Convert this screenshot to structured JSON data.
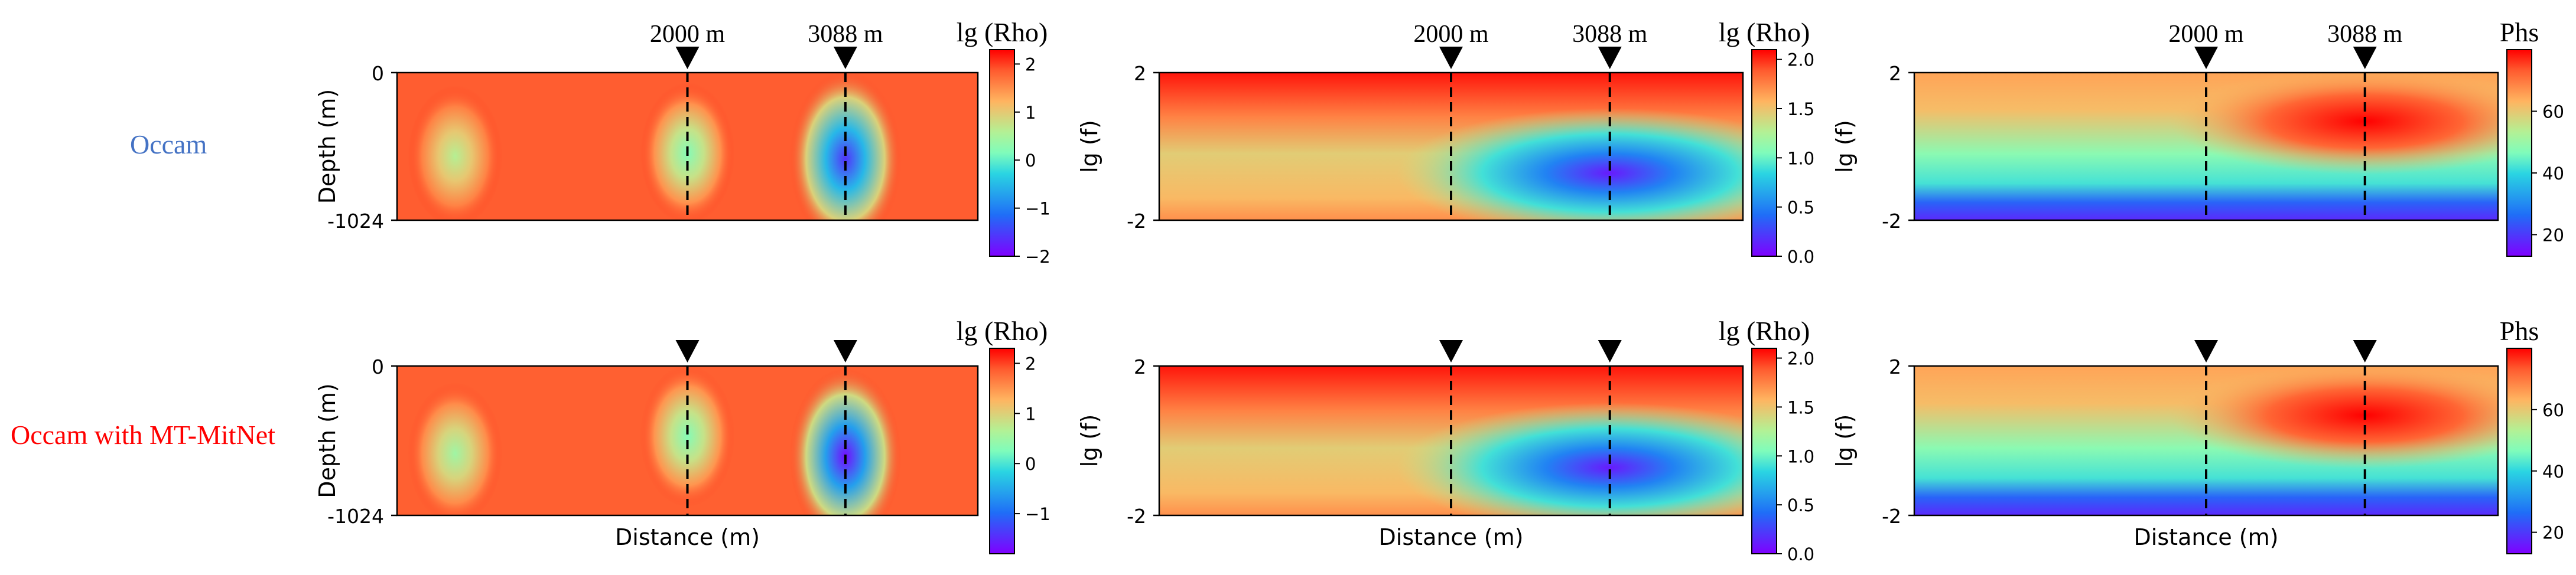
{
  "figure": {
    "row_labels": [
      {
        "text": "Occam",
        "color": "#4472c4"
      },
      {
        "text": "Occam with MT-MitNet",
        "color": "#ff0000"
      }
    ],
    "markers": [
      {
        "distance_m": 2000,
        "label": "2000 m"
      },
      {
        "distance_m": 3088,
        "label": "3088 m"
      }
    ],
    "distance_range_m": [
      0,
      4000
    ],
    "colormap": "rainbow"
  },
  "chart_data": [
    {
      "id": "occam-resistivity",
      "type": "heatmap",
      "row": "Occam",
      "quantity": "resistivity",
      "title": "lg (Rho)",
      "xlabel": "",
      "ylabel": "Depth (m)",
      "y_tick_labels": [
        "0",
        "-1024"
      ],
      "ylim": [
        -1024,
        0
      ],
      "colorbar": {
        "label": "lg (Rho)",
        "range": [
          -2,
          2.3
        ],
        "ticks": [
          "2",
          "1",
          "0",
          "−1",
          "−2"
        ]
      },
      "marker_labels_visible": true,
      "anomalies": [
        {
          "center_x_m": 400,
          "center_depth_m": -580,
          "value": 0.6
        },
        {
          "center_x_m": 2000,
          "center_depth_m": -560,
          "value": 0.2
        },
        {
          "center_x_m": 3088,
          "center_depth_m": -600,
          "value": -1.6
        }
      ],
      "background_value": 2.0
    },
    {
      "id": "occam-app-resistivity",
      "type": "heatmap",
      "row": "Occam",
      "quantity": "apparent resistivity",
      "title": "lg (Rho)",
      "xlabel": "",
      "ylabel": "lg (f)",
      "y_tick_labels": [
        "2",
        "-2"
      ],
      "ylim": [
        -2,
        2
      ],
      "colorbar": {
        "label": "lg (Rho)",
        "range": [
          0,
          2.1
        ],
        "ticks": [
          "2.0",
          "1.5",
          "1.0",
          "0.5",
          "0.0"
        ]
      },
      "marker_labels_visible": true
    },
    {
      "id": "occam-phase",
      "type": "heatmap",
      "row": "Occam",
      "quantity": "phase",
      "title": "Phs",
      "xlabel": "",
      "ylabel": "lg (f)",
      "y_tick_labels": [
        "2",
        "-2"
      ],
      "ylim": [
        -2,
        2
      ],
      "colorbar": {
        "label": "Phs",
        "range": [
          13,
          80
        ],
        "ticks": [
          "60",
          "40",
          "20"
        ]
      },
      "marker_labels_visible": true
    },
    {
      "id": "mitnet-resistivity",
      "type": "heatmap",
      "row": "Occam with MT-MitNet",
      "quantity": "resistivity",
      "title": "lg (Rho)",
      "xlabel": "Distance (m)",
      "ylabel": "Depth (m)",
      "y_tick_labels": [
        "0",
        "-1024"
      ],
      "ylim": [
        -1024,
        0
      ],
      "colorbar": {
        "label": "lg (Rho)",
        "range": [
          -1.8,
          2.3
        ],
        "ticks": [
          "2",
          "1",
          "0",
          "−1"
        ]
      },
      "marker_labels_visible": false,
      "anomalies": [
        {
          "center_x_m": 400,
          "center_depth_m": -600,
          "value": 0.5
        },
        {
          "center_x_m": 2000,
          "center_depth_m": -480,
          "value": 0.3
        },
        {
          "center_x_m": 3088,
          "center_depth_m": -620,
          "value": -1.7
        }
      ],
      "background_value": 2.0
    },
    {
      "id": "mitnet-app-resistivity",
      "type": "heatmap",
      "row": "Occam with MT-MitNet",
      "quantity": "apparent resistivity",
      "title": "lg (Rho)",
      "xlabel": "Distance (m)",
      "ylabel": "lg (f)",
      "y_tick_labels": [
        "2",
        "-2"
      ],
      "ylim": [
        -2,
        2
      ],
      "colorbar": {
        "label": "lg (Rho)",
        "range": [
          0,
          2.1
        ],
        "ticks": [
          "2.0",
          "1.5",
          "1.0",
          "0.5",
          "0.0"
        ]
      },
      "marker_labels_visible": false
    },
    {
      "id": "mitnet-phase",
      "type": "heatmap",
      "row": "Occam with MT-MitNet",
      "quantity": "phase",
      "title": "Phs",
      "xlabel": "Distance (m)",
      "ylabel": "lg (f)",
      "y_tick_labels": [
        "2",
        "-2"
      ],
      "ylim": [
        -2,
        2
      ],
      "colorbar": {
        "label": "Phs",
        "range": [
          13,
          80
        ],
        "ticks": [
          "60",
          "40",
          "20"
        ]
      },
      "marker_labels_visible": false
    }
  ]
}
